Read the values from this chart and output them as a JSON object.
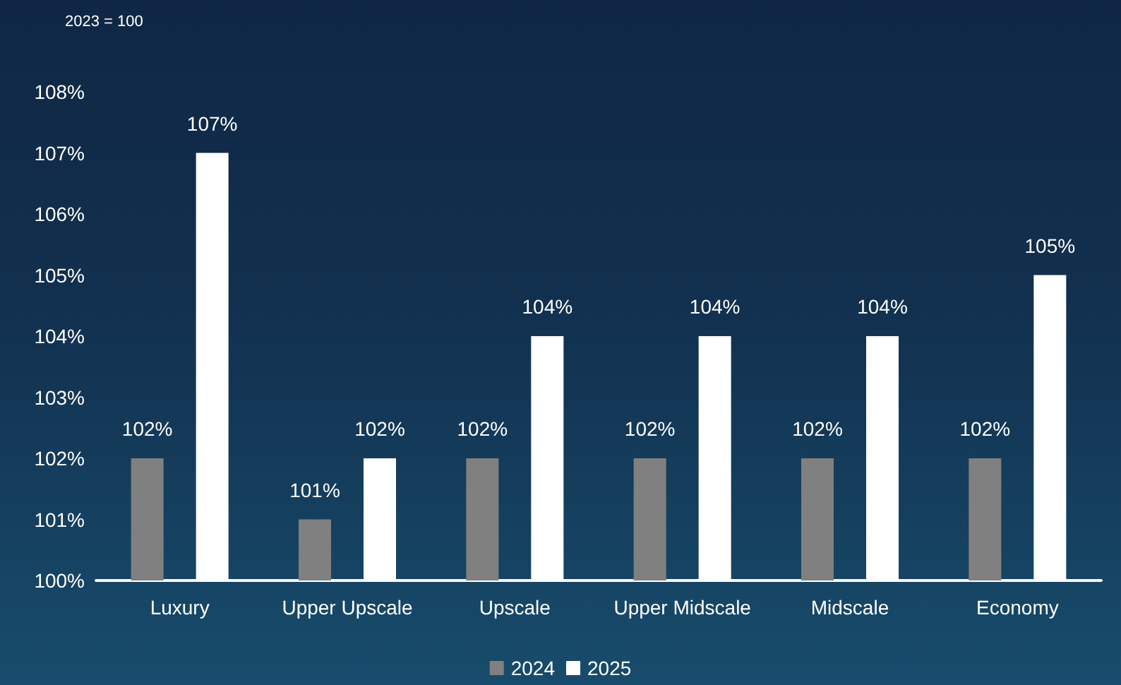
{
  "chart_data": {
    "type": "bar",
    "annotations": [
      "2023 = 100"
    ],
    "categories": [
      "Luxury",
      "Upper Upscale",
      "Upscale",
      "Upper Midscale",
      "Midscale",
      "Economy"
    ],
    "series": [
      {
        "name": "2024",
        "color": "#808080",
        "values": [
          102,
          101,
          102,
          102,
          102,
          102
        ],
        "value_labels": [
          "102%",
          "101%",
          "102%",
          "102%",
          "102%",
          "102%"
        ]
      },
      {
        "name": "2025",
        "color": "#ffffff",
        "values": [
          107,
          102,
          104,
          104,
          104,
          105
        ],
        "value_labels": [
          "107%",
          "102%",
          "104%",
          "104%",
          "104%",
          "105%"
        ]
      }
    ],
    "ylim": [
      100,
      108
    ],
    "yticks": [
      {
        "value": 100,
        "label": "100%"
      },
      {
        "value": 101,
        "label": "101%"
      },
      {
        "value": 102,
        "label": "102%"
      },
      {
        "value": 103,
        "label": "103%"
      },
      {
        "value": 104,
        "label": "104%"
      },
      {
        "value": 105,
        "label": "105%"
      },
      {
        "value": 106,
        "label": "106%"
      },
      {
        "value": 107,
        "label": "107%"
      },
      {
        "value": 108,
        "label": "108%"
      }
    ],
    "grid": false,
    "legend": "bottom"
  }
}
